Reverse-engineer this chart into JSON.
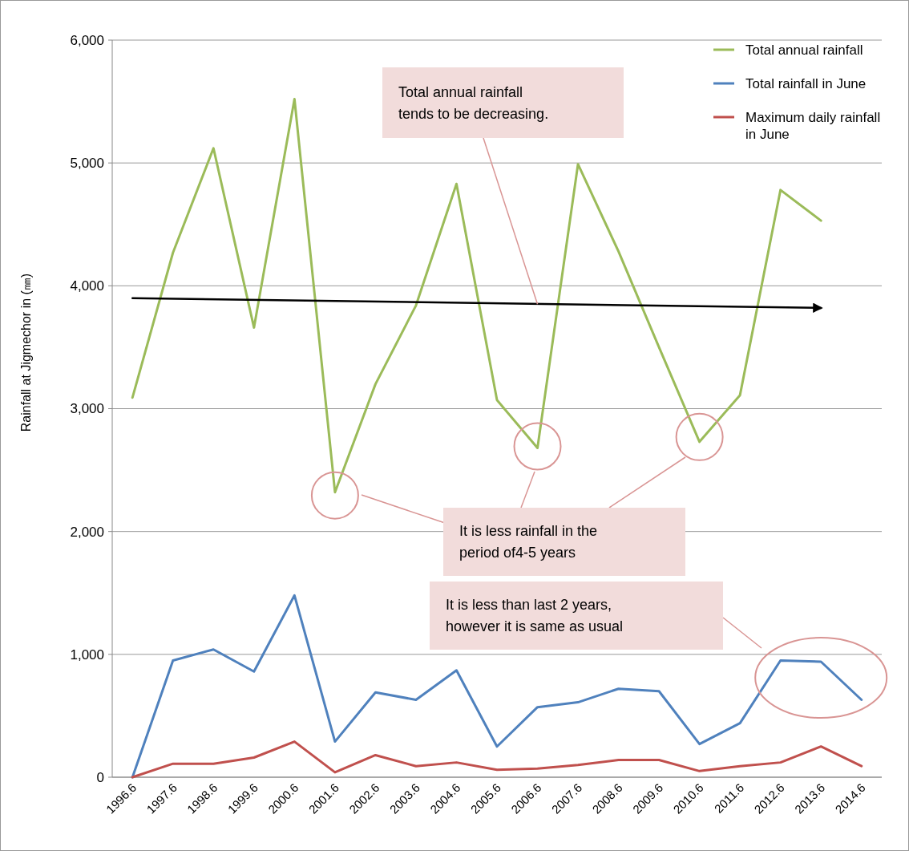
{
  "chart_data": {
    "type": "line",
    "ylabel": "Rainfall at Jigmechor in (㎜)",
    "categories": [
      "1996.6",
      "1997.6",
      "1998.6",
      "1999.6",
      "2000.6",
      "2001.6",
      "2002.6",
      "2003.6",
      "2004.6",
      "2005.6",
      "2006.6",
      "2007.6",
      "2008.6",
      "2009.6",
      "2010.6",
      "2011.6",
      "2012.6",
      "2013.6",
      "2014.6"
    ],
    "series": [
      {
        "name": "Total annual rainfall",
        "color": "#9bbb59",
        "values": [
          3090,
          4270,
          5120,
          3660,
          5520,
          2320,
          3200,
          3840,
          4830,
          3070,
          2680,
          4990,
          4280,
          3500,
          2730,
          3110,
          4780,
          4530,
          null
        ]
      },
      {
        "name": "Total rainfall in June",
        "color": "#4f81bd",
        "values": [
          0,
          950,
          1040,
          860,
          1480,
          290,
          690,
          630,
          870,
          250,
          570,
          610,
          720,
          700,
          270,
          440,
          950,
          940,
          630
        ]
      },
      {
        "name": "Maximum daily rainfall in June",
        "color": "#c0504d",
        "values": [
          0,
          110,
          110,
          160,
          290,
          40,
          180,
          90,
          120,
          60,
          70,
          100,
          140,
          140,
          50,
          90,
          120,
          250,
          90
        ]
      },
      {
        "type": "line",
        "color": "#000000",
        "x": [
          "1996.6",
          "2013.6"
        ],
        "values": [
          3900,
          3820
        ]
      }
    ],
    "ylim": [
      0,
      6000
    ],
    "yticks": [
      {
        "value": 0,
        "label": "0"
      },
      {
        "value": 1000,
        "label": "1,000"
      },
      {
        "value": 2000,
        "label": "2,000"
      },
      {
        "value": 3000,
        "label": "3,000"
      },
      {
        "value": 4000,
        "label": "4,000"
      },
      {
        "value": 5000,
        "label": "5,000"
      },
      {
        "value": 6000,
        "label": "6,000"
      }
    ],
    "grid": "y",
    "legend": "top right",
    "marker": "none",
    "line_style": "solid",
    "annotations": [
      {
        "text": "Total annual rainfall tends to be decreasing.",
        "x": "2006.6",
        "y": 3850
      },
      "It is less rainfall in the period of4-5 years",
      "It is less than last 2 years, however it is same as usual"
    ]
  }
}
